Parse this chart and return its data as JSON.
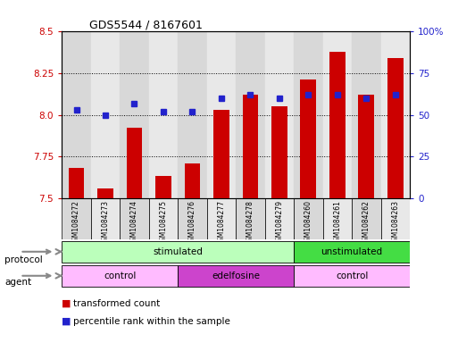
{
  "title": "GDS5544 / 8167601",
  "samples": [
    "GSM1084272",
    "GSM1084273",
    "GSM1084274",
    "GSM1084275",
    "GSM1084276",
    "GSM1084277",
    "GSM1084278",
    "GSM1084279",
    "GSM1084260",
    "GSM1084261",
    "GSM1084262",
    "GSM1084263"
  ],
  "transformed_count": [
    7.68,
    7.56,
    7.92,
    7.63,
    7.71,
    8.03,
    8.12,
    8.05,
    8.21,
    8.38,
    8.12,
    8.34
  ],
  "percentile_rank": [
    53,
    50,
    57,
    52,
    52,
    60,
    62,
    60,
    62,
    62,
    60,
    62
  ],
  "y_min": 7.5,
  "y_max": 8.5,
  "y_ticks": [
    7.5,
    7.75,
    8.0,
    8.25,
    8.5
  ],
  "y2_ticks": [
    0,
    25,
    50,
    75,
    100
  ],
  "bar_color": "#cc0000",
  "dot_color": "#2222cc",
  "protocol_groups": [
    {
      "label": "stimulated",
      "start": 0,
      "end": 8,
      "color": "#bbffbb"
    },
    {
      "label": "unstimulated",
      "start": 8,
      "end": 12,
      "color": "#44dd44"
    }
  ],
  "agent_groups": [
    {
      "label": "control",
      "start": 0,
      "end": 4,
      "color": "#ffbbff"
    },
    {
      "label": "edelfosine",
      "start": 4,
      "end": 8,
      "color": "#cc44cc"
    },
    {
      "label": "control",
      "start": 8,
      "end": 12,
      "color": "#ffbbff"
    }
  ],
  "legend_items": [
    {
      "label": "transformed count",
      "color": "#cc0000"
    },
    {
      "label": "percentile rank within the sample",
      "color": "#2222cc"
    }
  ],
  "col_bg_even": "#d8d8d8",
  "col_bg_odd": "#e8e8e8"
}
